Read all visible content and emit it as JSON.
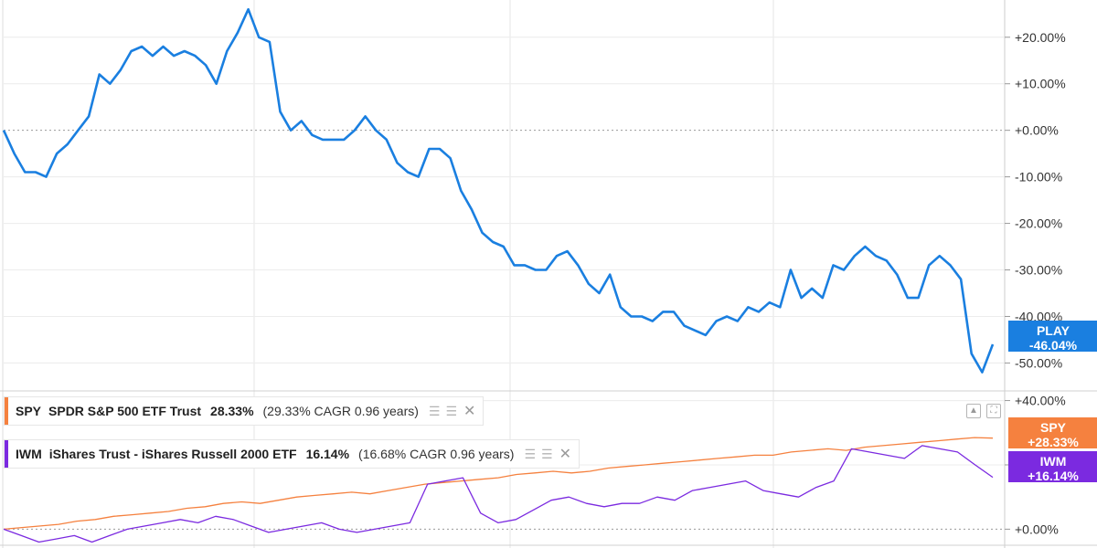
{
  "chart_data": [
    {
      "type": "line",
      "title": "",
      "xlabel": "",
      "ylabel": "",
      "ylim": [
        -56,
        28
      ],
      "yticks": [
        "+20.00%",
        "+10.00%",
        "+0.00%",
        "-10.00%",
        "-20.00%",
        "-30.00%",
        "-40.00%",
        "-50.00%"
      ],
      "grid": true,
      "series": [
        {
          "name": "PLAY",
          "color": "#1a7fe0",
          "last_value_label": "-46.04%",
          "values": [
            0,
            -5,
            -9,
            -9,
            -10,
            -5,
            -3,
            0,
            3,
            12,
            10,
            13,
            17,
            18,
            16,
            18,
            16,
            17,
            16,
            14,
            10,
            17,
            21,
            26,
            20,
            19,
            4,
            0,
            2,
            -1,
            -2,
            -2,
            -2,
            0,
            3,
            0,
            -2,
            -7,
            -9,
            -10,
            -4,
            -4,
            -6,
            -13,
            -17,
            -22,
            -24,
            -25,
            -29,
            -29,
            -30,
            -30,
            -27,
            -26,
            -29,
            -33,
            -35,
            -31,
            -38,
            -40,
            -40,
            -41,
            -39,
            -39,
            -42,
            -43,
            -44,
            -41,
            -40,
            -41,
            -38,
            -39,
            -37,
            -38,
            -30,
            -36,
            -34,
            -36,
            -29,
            -30,
            -27,
            -25,
            -27,
            -28,
            -31,
            -36,
            -36,
            -29,
            -27,
            -29,
            -32,
            -48,
            -52,
            -46
          ]
        }
      ]
    },
    {
      "type": "line",
      "title": "",
      "xlabel": "",
      "ylabel": "",
      "ylim": [
        -5,
        43
      ],
      "yticks": [
        "+40.00%",
        "+20.00%",
        "+0.00%"
      ],
      "grid": true,
      "series": [
        {
          "name": "SPY",
          "color": "#f5813f",
          "label": "SPDR S&P 500 ETF Trust",
          "return": "28.33%",
          "cagr_text": "(29.33% CAGR 0.96 years)",
          "last_value_label": "+28.33%",
          "values": [
            0,
            0.5,
            1,
            1.5,
            2.5,
            3,
            4,
            4.5,
            5,
            5.5,
            6.5,
            7,
            8,
            8.5,
            8,
            9,
            10,
            10.5,
            11,
            11.5,
            11,
            12,
            13,
            14,
            14.5,
            15,
            15.5,
            16,
            17,
            17.5,
            18,
            17.5,
            18,
            19,
            19.5,
            20,
            20.5,
            21,
            21.5,
            22,
            22.5,
            23,
            23,
            24,
            24.5,
            25,
            24.5,
            25.5,
            26,
            26.5,
            27,
            27.5,
            28,
            28.5,
            28.33
          ]
        },
        {
          "name": "IWM",
          "color": "#7b2ae0",
          "label": "iShares Trust - iShares Russell 2000 ETF",
          "return": "16.14%",
          "cagr_text": "(16.68% CAGR 0.96 years)",
          "last_value_label": "+16.14%",
          "values": [
            0,
            -2,
            -4,
            -3,
            -2,
            -4,
            -2,
            0,
            1,
            2,
            3,
            2,
            4,
            3,
            1,
            -1,
            0,
            1,
            2,
            0,
            -1,
            0,
            1,
            2,
            14,
            15,
            16,
            5,
            2,
            3,
            6,
            9,
            10,
            8,
            7,
            8,
            8,
            10,
            9,
            12,
            13,
            14,
            15,
            12,
            11,
            10,
            13,
            15,
            25,
            24,
            23,
            22,
            26,
            25,
            24,
            20,
            16.14
          ]
        }
      ]
    }
  ],
  "legend": {
    "spy": {
      "ticker": "SPY",
      "name": "SPDR S&P 500 ETF Trust",
      "ret": "28.33%",
      "cagr": "(29.33% CAGR 0.96 years)"
    },
    "iwm": {
      "ticker": "IWM",
      "name": "iShares Trust - iShares Russell 2000 ETF",
      "ret": "16.14%",
      "cagr": "(16.68% CAGR 0.96 years)"
    }
  },
  "badges": {
    "play": {
      "ticker": "PLAY",
      "value": "-46.04%",
      "color": "#1a7fe0"
    },
    "spy": {
      "ticker": "SPY",
      "value": "+28.33%",
      "color": "#f5813f"
    },
    "iwm": {
      "ticker": "IWM",
      "value": "+16.14%",
      "color": "#7b2ae0"
    }
  },
  "icons": {
    "legend_actions": [
      "stack-icon",
      "layers-icon",
      "close-icon"
    ],
    "panel_tools": [
      "collapse-up-icon",
      "expand-icon"
    ]
  }
}
